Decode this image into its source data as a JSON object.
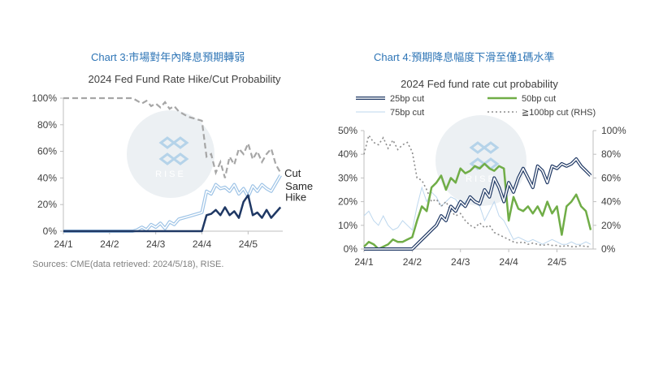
{
  "headings": {
    "chart1": "Chart 3:市場對年內降息預期轉弱",
    "chart2": "Chart 4:預期降息幅度下滑至僅1碼水準"
  },
  "source": "Sources: CME(data retrieved: 2024/5/18), RISE.",
  "watermark": {
    "text": "RISE"
  },
  "colors": {
    "cut": "#a6a6a6",
    "same": "#9dc3e6",
    "hike": "#1f3864",
    "bp25": "#1f3864",
    "bp50": "#70ad47",
    "bp75": "#bdd7ee",
    "bp100": "#8c8c8c",
    "heading": "#2e75b6"
  },
  "chart_data": [
    {
      "type": "line",
      "title": "2024 Fed Fund Rate Hike/Cut Probability",
      "x_ticks": [
        "24/1",
        "24/2",
        "24/3",
        "24/4",
        "24/5"
      ],
      "x_tick_positions": [
        0,
        20,
        40,
        60,
        80
      ],
      "x": [
        0,
        4,
        8,
        12,
        16,
        20,
        24,
        28,
        30,
        32,
        34,
        36,
        38,
        40,
        42,
        44,
        46,
        48,
        50,
        52,
        54,
        56,
        58,
        60,
        62,
        64,
        66,
        68,
        70,
        72,
        74,
        76,
        78,
        80,
        82,
        84,
        86,
        88,
        90,
        92,
        94
      ],
      "ylim": [
        0,
        100
      ],
      "y_ticks": [
        "0%",
        "20%",
        "40%",
        "60%",
        "80%",
        "100%"
      ],
      "series": [
        {
          "name": "Cut",
          "style": "dashed",
          "values": [
            100,
            100,
            100,
            100,
            100,
            100,
            100,
            100,
            100,
            98,
            96,
            98,
            94,
            96,
            93,
            97,
            92,
            94,
            90,
            88,
            86,
            85,
            84,
            83,
            56,
            58,
            44,
            52,
            40,
            56,
            50,
            62,
            58,
            66,
            54,
            60,
            52,
            58,
            62,
            50,
            44
          ]
        },
        {
          "name": "Same",
          "style": "double",
          "values": [
            0,
            0,
            0,
            0,
            0,
            0,
            0,
            0,
            0,
            1,
            3,
            1,
            5,
            3,
            6,
            2,
            7,
            5,
            9,
            10,
            11,
            12,
            13,
            14,
            30,
            28,
            35,
            32,
            33,
            30,
            35,
            28,
            32,
            26,
            34,
            30,
            35,
            32,
            30,
            36,
            42
          ]
        },
        {
          "name": "Hike",
          "style": "solid",
          "values": [
            0,
            0,
            0,
            0,
            0,
            0,
            0,
            0,
            0,
            0,
            0,
            0,
            0,
            0,
            0,
            0,
            0,
            0,
            0,
            0,
            0,
            0,
            0,
            0,
            12,
            13,
            16,
            12,
            18,
            12,
            15,
            10,
            22,
            27,
            12,
            14,
            10,
            16,
            10,
            14,
            18
          ]
        }
      ],
      "labels": [
        "Cut",
        "Same",
        "Hike"
      ]
    },
    {
      "type": "line",
      "title": "2024 Fed fund rate cut probability",
      "x_ticks": [
        "24/1",
        "24/2",
        "24/3",
        "24/4",
        "24/5"
      ],
      "x_tick_positions": [
        0,
        20,
        40,
        60,
        80
      ],
      "x": [
        0,
        2,
        4,
        6,
        8,
        10,
        12,
        14,
        16,
        18,
        20,
        22,
        24,
        26,
        28,
        30,
        32,
        34,
        36,
        38,
        40,
        42,
        44,
        46,
        48,
        50,
        52,
        54,
        56,
        58,
        60,
        62,
        64,
        66,
        68,
        70,
        72,
        74,
        76,
        78,
        80,
        82,
        84,
        86,
        88,
        90,
        92,
        94
      ],
      "ylim_left": [
        0,
        50
      ],
      "ylim_right": [
        0,
        100
      ],
      "y_ticks_left": [
        "0%",
        "10%",
        "20%",
        "30%",
        "40%",
        "50%"
      ],
      "y_ticks_right": [
        "0%",
        "20%",
        "40%",
        "60%",
        "80%",
        "100%"
      ],
      "series": [
        {
          "name": "25bp cut",
          "axis": "left",
          "style": "double",
          "values": [
            0,
            0,
            0,
            0,
            0,
            0,
            0,
            0,
            0,
            0,
            0,
            2,
            4,
            6,
            8,
            10,
            14,
            12,
            18,
            16,
            20,
            18,
            22,
            20,
            19,
            25,
            22,
            30,
            26,
            20,
            28,
            24,
            30,
            34,
            30,
            26,
            35,
            33,
            28,
            35,
            34,
            36,
            35,
            36,
            38,
            35,
            33,
            31
          ]
        },
        {
          "name": "50bp cut",
          "axis": "left",
          "style": "solid",
          "values": [
            1,
            3,
            2,
            0,
            1,
            2,
            4,
            3,
            3,
            4,
            5,
            12,
            18,
            16,
            26,
            28,
            31,
            25,
            30,
            28,
            34,
            32,
            33,
            35,
            34,
            36,
            34,
            33,
            35,
            34,
            12,
            22,
            17,
            16,
            18,
            15,
            18,
            14,
            20,
            15,
            18,
            6,
            18,
            20,
            23,
            18,
            16,
            8
          ]
        },
        {
          "name": "75bp cut",
          "axis": "left",
          "style": "thin",
          "values": [
            14,
            16,
            12,
            10,
            14,
            10,
            8,
            9,
            12,
            10,
            8,
            18,
            26,
            20,
            24,
            22,
            18,
            20,
            22,
            21,
            18,
            20,
            22,
            20,
            18,
            12,
            16,
            20,
            14,
            12,
            8,
            4,
            5,
            4,
            3,
            4,
            3,
            2,
            3,
            4,
            3,
            2,
            2,
            3,
            2,
            2,
            3,
            2
          ]
        },
        {
          "name": "≧100bp cut (RHS)",
          "axis": "right",
          "style": "dotted",
          "values": [
            80,
            96,
            90,
            88,
            94,
            85,
            92,
            84,
            88,
            90,
            82,
            60,
            58,
            50,
            40,
            42,
            36,
            40,
            32,
            28,
            30,
            24,
            20,
            18,
            22,
            18,
            20,
            14,
            12,
            10,
            8,
            6,
            5,
            6,
            4,
            5,
            4,
            3,
            4,
            3,
            3,
            2,
            3,
            2,
            2,
            3,
            2,
            2
          ]
        }
      ]
    }
  ]
}
